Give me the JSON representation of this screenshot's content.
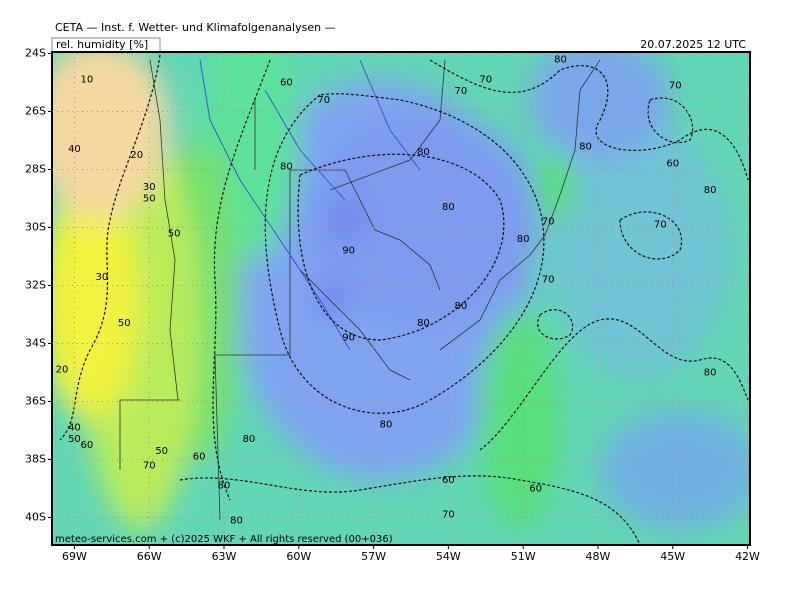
{
  "header": {
    "title": "CETA — Inst. f. Wetter- und Klimafolgenanalysen —",
    "variable": "rel. humidity [%]",
    "valid_time": "20.07.2025 12 UTC"
  },
  "map": {
    "lon_range": [
      -69.9,
      -41.9
    ],
    "lat_range": [
      -23.95,
      -40.95
    ],
    "grid": true,
    "lon_ticks": [
      {
        "value": -69,
        "label": "69W"
      },
      {
        "value": -66,
        "label": "66W"
      },
      {
        "value": -63,
        "label": "63W"
      },
      {
        "value": -60,
        "label": "60W"
      },
      {
        "value": -57,
        "label": "57W"
      },
      {
        "value": -54,
        "label": "54W"
      },
      {
        "value": -51,
        "label": "51W"
      },
      {
        "value": -48,
        "label": "48W"
      },
      {
        "value": -45,
        "label": "45W"
      },
      {
        "value": -42,
        "label": "42W"
      }
    ],
    "lat_ticks": [
      {
        "value": -24,
        "label": "24S"
      },
      {
        "value": -26,
        "label": "26S"
      },
      {
        "value": -28,
        "label": "28S"
      },
      {
        "value": -30,
        "label": "30S"
      },
      {
        "value": -32,
        "label": "32S"
      },
      {
        "value": -34,
        "label": "34S"
      },
      {
        "value": -36,
        "label": "36S"
      },
      {
        "value": -38,
        "label": "38S"
      },
      {
        "value": -40,
        "label": "40S"
      }
    ],
    "contour_labels": [
      {
        "value": 10,
        "lon": -68.5,
        "lat": -24.9
      },
      {
        "value": 60,
        "lon": -60.5,
        "lat": -25.0
      },
      {
        "value": 70,
        "lon": -59.0,
        "lat": -25.6
      },
      {
        "value": 70,
        "lon": -52.5,
        "lat": -24.9
      },
      {
        "value": 70,
        "lon": -53.5,
        "lat": -25.3
      },
      {
        "value": 80,
        "lon": -49.5,
        "lat": -24.2
      },
      {
        "value": 70,
        "lon": -44.9,
        "lat": -25.1
      },
      {
        "value": 40,
        "lon": -69.0,
        "lat": -27.3
      },
      {
        "value": 20,
        "lon": -66.5,
        "lat": -27.5
      },
      {
        "value": 80,
        "lon": -60.5,
        "lat": -27.9
      },
      {
        "value": 80,
        "lon": -55.0,
        "lat": -27.4
      },
      {
        "value": 80,
        "lon": -48.5,
        "lat": -27.2
      },
      {
        "value": 60,
        "lon": -45.0,
        "lat": -27.8
      },
      {
        "value": 80,
        "lon": -43.5,
        "lat": -28.7
      },
      {
        "value": 30,
        "lon": -66.0,
        "lat": -28.6
      },
      {
        "value": 50,
        "lon": -66.0,
        "lat": -29.0
      },
      {
        "value": 80,
        "lon": -54.0,
        "lat": -29.3
      },
      {
        "value": 70,
        "lon": -50.0,
        "lat": -29.8
      },
      {
        "value": 70,
        "lon": -45.5,
        "lat": -29.9
      },
      {
        "value": 50,
        "lon": -65.0,
        "lat": -30.2
      },
      {
        "value": 80,
        "lon": -51.0,
        "lat": -30.4
      },
      {
        "value": 90,
        "lon": -58.0,
        "lat": -30.8
      },
      {
        "value": 30,
        "lon": -67.9,
        "lat": -31.7
      },
      {
        "value": 70,
        "lon": -50.0,
        "lat": -31.8
      },
      {
        "value": 80,
        "lon": -53.5,
        "lat": -32.7
      },
      {
        "value": 50,
        "lon": -67.0,
        "lat": -33.3
      },
      {
        "value": 80,
        "lon": -55.0,
        "lat": -33.3
      },
      {
        "value": 90,
        "lon": -58.0,
        "lat": -33.8
      },
      {
        "value": 20,
        "lon": -69.5,
        "lat": -34.9
      },
      {
        "value": 80,
        "lon": -43.5,
        "lat": -35.0
      },
      {
        "value": 80,
        "lon": -56.5,
        "lat": -36.8
      },
      {
        "value": 40,
        "lon": -69.0,
        "lat": -36.9
      },
      {
        "value": 50,
        "lon": -69.0,
        "lat": -37.3
      },
      {
        "value": 60,
        "lon": -68.5,
        "lat": -37.5
      },
      {
        "value": 80,
        "lon": -62.0,
        "lat": -37.3
      },
      {
        "value": 50,
        "lon": -65.5,
        "lat": -37.7
      },
      {
        "value": 60,
        "lon": -64.0,
        "lat": -37.9
      },
      {
        "value": 70,
        "lon": -66.0,
        "lat": -38.2
      },
      {
        "value": 60,
        "lon": -54.0,
        "lat": -38.7
      },
      {
        "value": 80,
        "lon": -63.0,
        "lat": -38.9
      },
      {
        "value": 60,
        "lon": -50.5,
        "lat": -39.0
      },
      {
        "value": 70,
        "lon": -54.0,
        "lat": -39.9
      },
      {
        "value": 80,
        "lon": -62.5,
        "lat": -40.1
      }
    ]
  },
  "footer": {
    "credit": "meteo-services.com + (c)2025 WKF + All rights reserved (00+036)"
  }
}
